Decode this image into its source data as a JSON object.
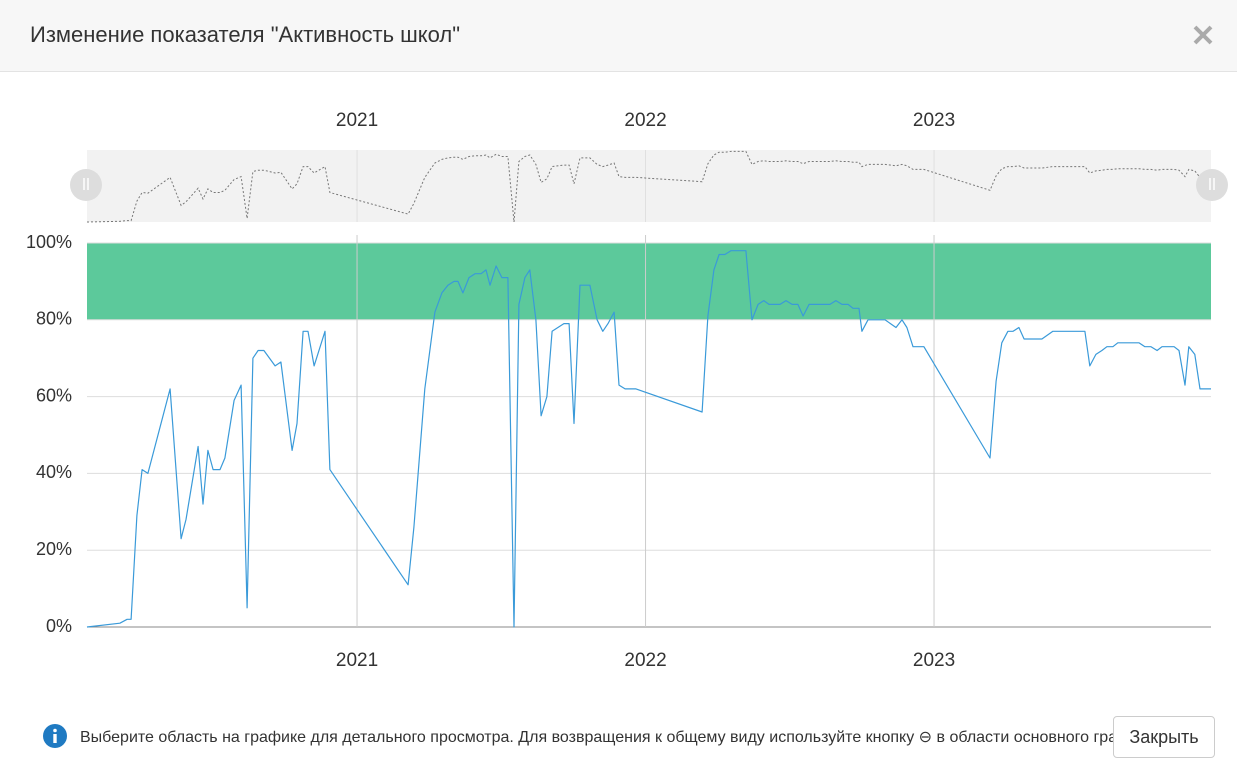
{
  "modal": {
    "title": "Изменение показателя \"Активность школ\"",
    "info_text": "Выберите область на графике для детального просмотра. Для возвращения к общему виду используйте кнопку ⊖ в области основного графика.",
    "close_button": "Закрыть"
  },
  "chart_data": {
    "type": "line",
    "x": [
      2020.064,
      2020.178,
      2020.203,
      2020.217,
      2020.237,
      2020.255,
      2020.275,
      2020.317,
      2020.352,
      2020.39,
      2020.407,
      2020.449,
      2020.466,
      2020.483,
      2020.501,
      2020.525,
      2020.542,
      2020.574,
      2020.598,
      2020.619,
      2020.639,
      2020.657,
      2020.677,
      2020.716,
      2020.736,
      2020.775,
      2020.792,
      2020.813,
      2020.83,
      2020.851,
      2020.889,
      2020.906,
      2021.177,
      2021.197,
      2021.235,
      2021.27,
      2021.294,
      2021.315,
      2021.336,
      2021.35,
      2021.367,
      2021.388,
      2021.409,
      2021.43,
      2021.447,
      2021.461,
      2021.482,
      2021.502,
      2021.523,
      2021.544,
      2021.561,
      2021.582,
      2021.599,
      2021.62,
      2021.638,
      2021.658,
      2021.676,
      2021.717,
      2021.735,
      2021.752,
      2021.773,
      2021.807,
      2021.832,
      2021.852,
      2021.87,
      2021.891,
      2021.908,
      2021.929,
      2021.967,
      2022.196,
      2022.216,
      2022.237,
      2022.255,
      2022.275,
      2022.296,
      2022.348,
      2022.369,
      2022.39,
      2022.41,
      2022.428,
      2022.466,
      2022.487,
      2022.508,
      2022.528,
      2022.546,
      2022.567,
      2022.639,
      2022.66,
      2022.681,
      2022.702,
      2022.719,
      2022.74,
      2022.75,
      2022.771,
      2022.83,
      2022.868,
      2022.889,
      2022.906,
      2022.927,
      2022.965,
      2023.194,
      2023.215,
      2023.235,
      2023.256,
      2023.274,
      2023.294,
      2023.312,
      2023.374,
      2023.412,
      2023.523,
      2023.54,
      2023.561,
      2023.582,
      2023.599,
      2023.62,
      2023.637,
      2023.71,
      2023.731,
      2023.752,
      2023.773,
      2023.79,
      2023.832,
      2023.849,
      2023.87,
      2023.883,
      2023.904,
      2023.922,
      2023.96
    ],
    "series": [
      {
        "color": "#3a9ad9",
        "values": [
          0,
          1,
          2,
          2,
          29,
          41,
          40,
          52,
          62,
          23,
          28,
          47,
          32,
          46,
          41,
          41,
          44,
          59,
          63,
          5,
          70,
          72,
          72,
          68,
          69,
          46,
          53,
          77,
          77,
          68,
          77,
          41,
          11,
          26,
          62,
          82,
          87,
          89,
          90,
          90,
          87,
          91,
          92,
          92,
          93,
          89,
          94,
          91,
          91,
          0,
          84,
          91,
          93,
          80,
          55,
          60,
          77,
          79,
          79,
          53,
          89,
          89,
          80,
          77,
          79,
          82,
          63,
          62,
          62,
          56,
          81,
          93,
          97,
          97,
          98,
          98,
          80,
          84,
          85,
          84,
          84,
          85,
          84,
          84,
          81,
          84,
          84,
          85,
          84,
          84,
          83,
          83,
          77,
          80,
          80,
          78,
          80,
          78,
          73,
          73,
          44,
          64,
          74,
          77,
          77,
          78,
          75,
          75,
          77,
          77,
          68,
          71,
          72,
          73,
          73,
          74,
          74,
          73,
          73,
          72,
          73,
          73,
          72,
          63,
          73,
          71,
          62,
          62
        ]
      }
    ],
    "xlim": [
      2020.064,
      2023.96
    ],
    "xticks": [
      2021,
      2022,
      2023
    ],
    "ylim": [
      0,
      100
    ],
    "yticks": [
      {
        "value": 0,
        "label": "0%"
      },
      {
        "value": 20,
        "label": "20%"
      },
      {
        "value": 40,
        "label": "40%"
      },
      {
        "value": 60,
        "label": "60%"
      },
      {
        "value": 80,
        "label": "80%"
      },
      {
        "value": 100,
        "label": "100%"
      }
    ],
    "grid": true,
    "plot_band": [
      80,
      100
    ],
    "plot_band_color": "#5cc99b",
    "navigator": true
  }
}
